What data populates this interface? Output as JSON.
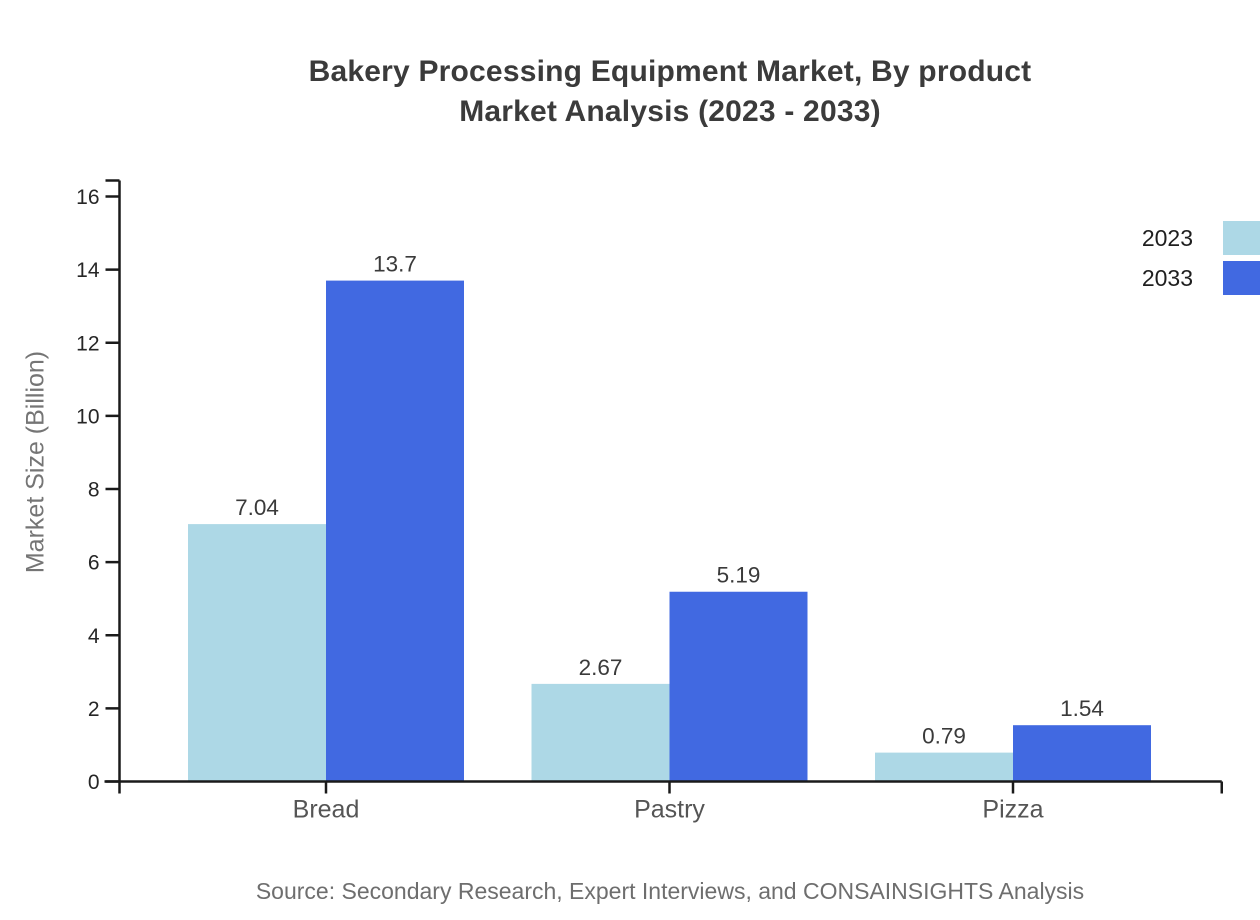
{
  "chart_data": {
    "type": "bar",
    "title": "Bakery Processing Equipment Market, By product Market Analysis (2023 - 2033)",
    "title_lines": [
      "Bakery Processing Equipment Market, By product",
      "Market Analysis (2023 - 2033)"
    ],
    "categories": [
      "Bread",
      "Pastry",
      "Pizza"
    ],
    "series": [
      {
        "name": "2023",
        "color": "#ADD8E6",
        "values": [
          7.04,
          2.67,
          0.79
        ],
        "labels": [
          "7.04",
          "2.67",
          "0.79"
        ]
      },
      {
        "name": "2033",
        "color": "#4169E1",
        "values": [
          13.7,
          5.19,
          1.54
        ],
        "labels": [
          "13.7",
          "5.19",
          "1.54"
        ]
      }
    ],
    "xlabel": "",
    "ylabel": "Market Size (Billion)",
    "ylim": [
      0,
      16
    ],
    "yticks": [
      0,
      2,
      4,
      6,
      8,
      10,
      12,
      14,
      16
    ],
    "grid": false,
    "legend_position": "top-right",
    "value_labels_shown": true
  },
  "source_note": "Source: Secondary Research, Expert Interviews, and CONSAINSIGHTS Analysis",
  "colors": {
    "series_2023": "#ADD8E6",
    "series_2033": "#4169E1",
    "axis": "#1a1a1a",
    "title_text": "#3b3b3b",
    "tick_label": "#262626",
    "category_label": "#555555",
    "value_label": "#3a3a3a",
    "axis_title": "#757575",
    "source_text": "#6e6e6e",
    "background": "#ffffff"
  }
}
